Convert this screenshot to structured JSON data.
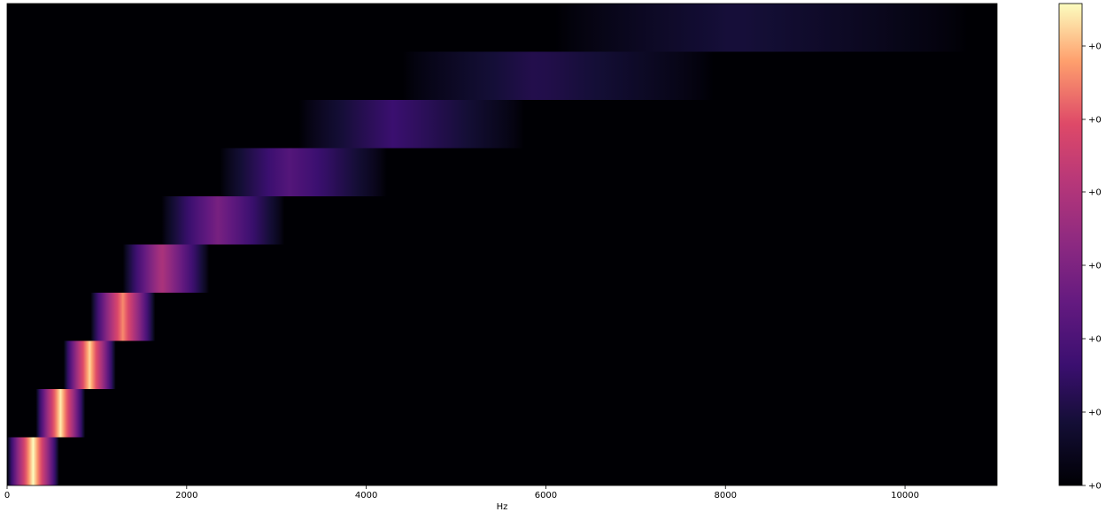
{
  "chart_data": {
    "type": "heatmap",
    "title": "",
    "xlabel": "Hz",
    "ylabel": "",
    "xlim": [
      0,
      11025
    ],
    "xticks": [
      0,
      2000,
      4000,
      6000,
      8000,
      10000
    ],
    "rows": 10,
    "colormap": "magma",
    "colorbar_ticks": [
      "+0",
      "+0",
      "+0",
      "+0",
      "+0",
      "+0",
      "+0"
    ],
    "bands": [
      {
        "low": 0,
        "high": 580,
        "center": 290,
        "peak": 1.0
      },
      {
        "low": 320,
        "high": 870,
        "center": 595,
        "peak": 0.98
      },
      {
        "low": 630,
        "high": 1210,
        "center": 920,
        "peak": 0.95
      },
      {
        "low": 930,
        "high": 1650,
        "center": 1290,
        "peak": 0.85
      },
      {
        "low": 1290,
        "high": 2250,
        "center": 1720,
        "peak": 0.6
      },
      {
        "low": 1720,
        "high": 3090,
        "center": 2350,
        "peak": 0.44
      },
      {
        "low": 2370,
        "high": 4230,
        "center": 3140,
        "peak": 0.33
      },
      {
        "low": 3250,
        "high": 5760,
        "center": 4300,
        "peak": 0.25
      },
      {
        "low": 4400,
        "high": 7870,
        "center": 5900,
        "peak": 0.18
      },
      {
        "low": 6100,
        "high": 10700,
        "center": 8100,
        "peak": 0.14
      }
    ]
  }
}
